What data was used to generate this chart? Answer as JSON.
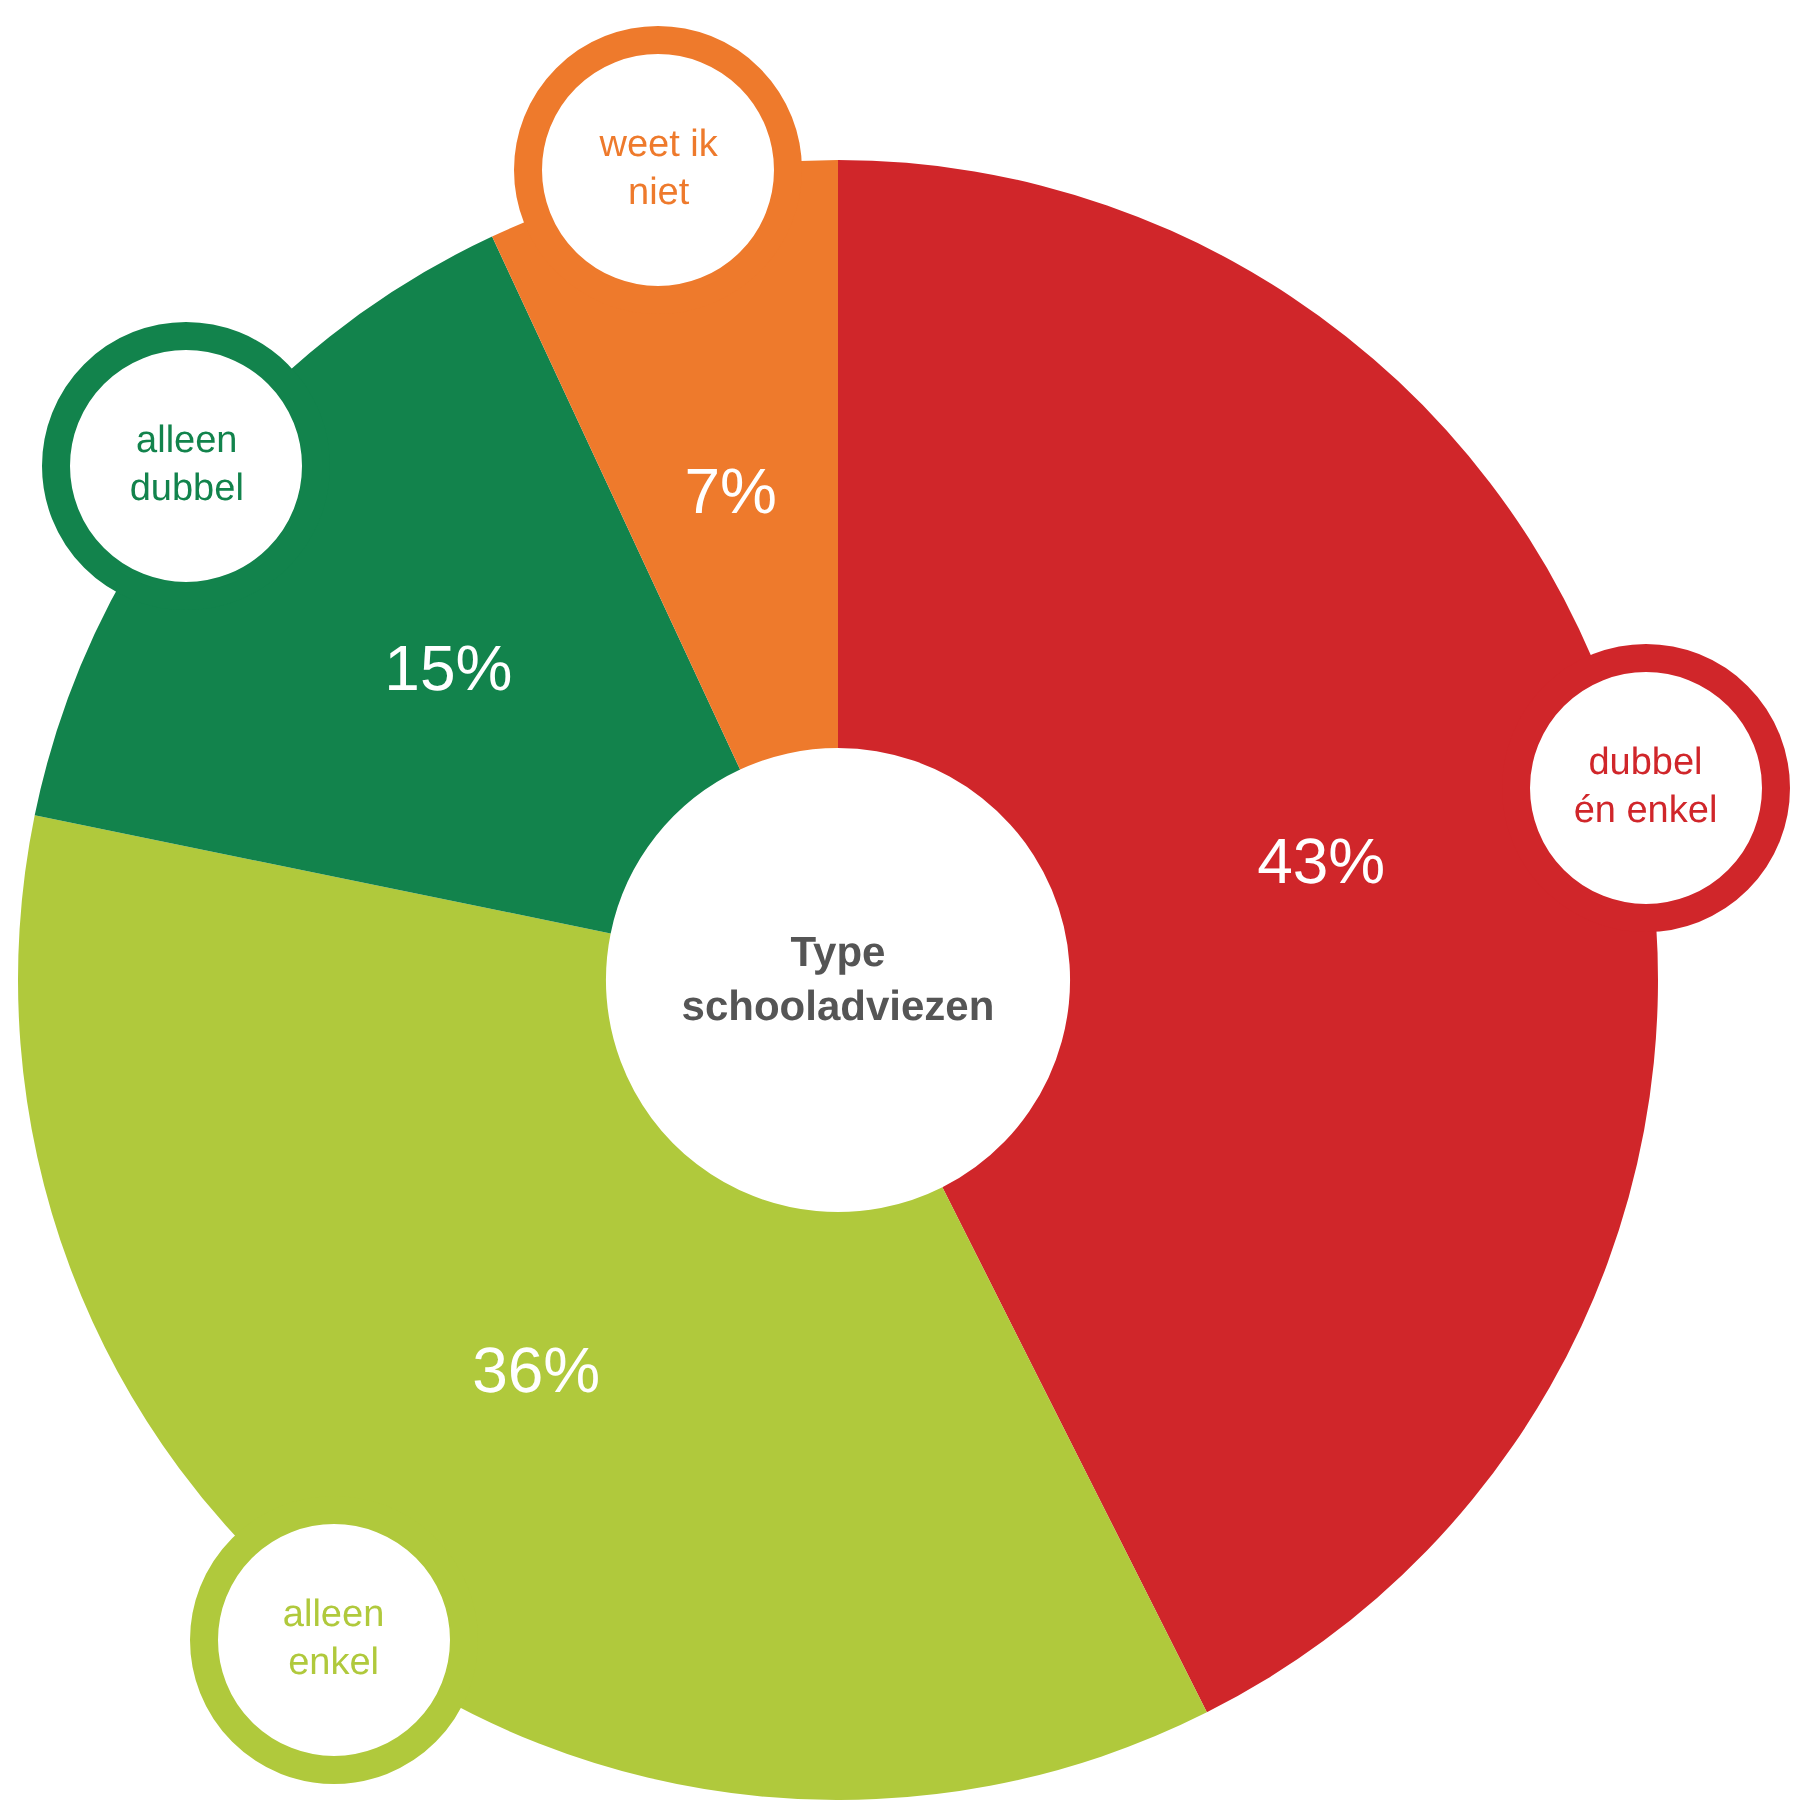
{
  "chart_data": {
    "type": "donut",
    "title": "Type schooladviezen",
    "categories": [
      "dubbel én enkel",
      "alleen enkel",
      "alleen dubbel",
      "weet ik niet"
    ],
    "values": [
      43,
      36,
      15,
      7
    ],
    "colors": [
      "#d0262a",
      "#b0c93c",
      "#12834c",
      "#ee7a2c"
    ],
    "value_labels": [
      "43%",
      "36%",
      "15%",
      "7%"
    ]
  }
}
